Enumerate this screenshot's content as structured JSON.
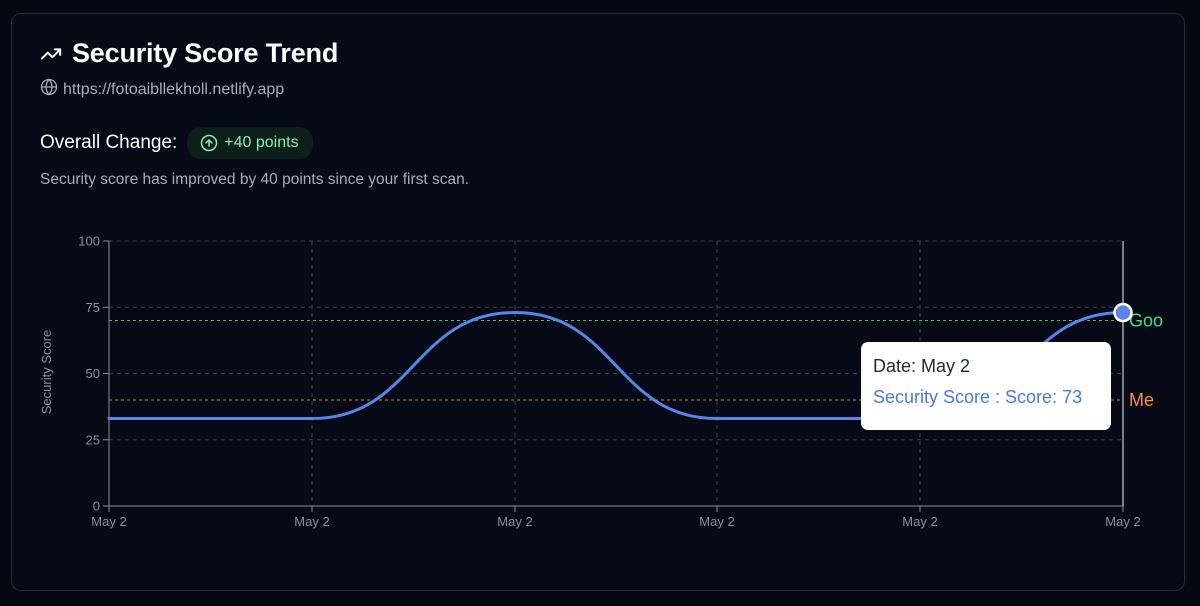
{
  "header": {
    "title": "Security Score Trend",
    "title_icon": "trending-up-icon",
    "url": "https://fotoaibllekholl.netlify.app",
    "url_icon": "globe-icon"
  },
  "summary": {
    "change_label": "Overall Change:",
    "change_value": "+40 points",
    "change_icon": "arrow-up-circle-icon",
    "description": "Security score has improved by 40 points since your first scan."
  },
  "tooltip": {
    "date_line": "Date: May 2",
    "value_line": "Security Score : Score: 73"
  },
  "colors": {
    "line": "#5b84e8",
    "good": "#4ade80",
    "medium": "#fb923c",
    "badge_text": "#86efac"
  },
  "chart_data": {
    "type": "line",
    "categories": [
      "May 2",
      "May 2",
      "May 2",
      "May 2",
      "May 2",
      "May 2"
    ],
    "series": [
      {
        "name": "Security Score",
        "values": [
          33,
          33,
          73,
          33,
          33,
          73
        ]
      }
    ],
    "ylabel": "Security Score",
    "xlabel": "",
    "ylim": [
      0,
      100
    ],
    "yticks": [
      0,
      25,
      50,
      75,
      100
    ],
    "grid": true,
    "reference_lines": [
      {
        "label": "Goo",
        "value": 70,
        "color": "#4ade80"
      },
      {
        "label": "Me",
        "value": 40,
        "color": "#fb923c"
      }
    ],
    "active_index": 5
  }
}
